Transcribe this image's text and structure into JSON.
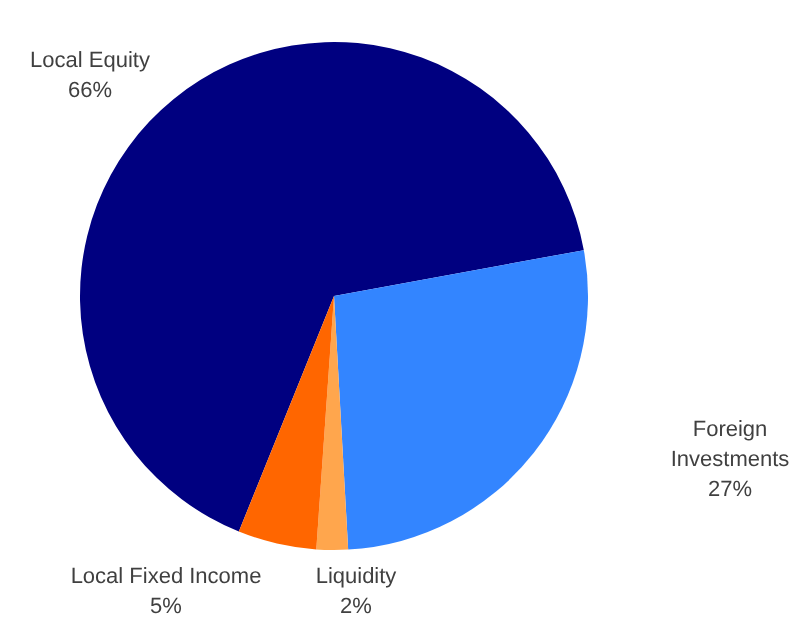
{
  "chart_data": {
    "type": "pie",
    "categories": [
      "Local Equity",
      "Foreign Investments",
      "Liquidity",
      "Local Fixed Income"
    ],
    "values": [
      66,
      27,
      2,
      5
    ],
    "value_labels": [
      "66%",
      "27%",
      "2%",
      "5%"
    ],
    "colors": [
      "#000080",
      "#3385ff",
      "#ffa64d",
      "#ff6600"
    ],
    "legend": false
  }
}
